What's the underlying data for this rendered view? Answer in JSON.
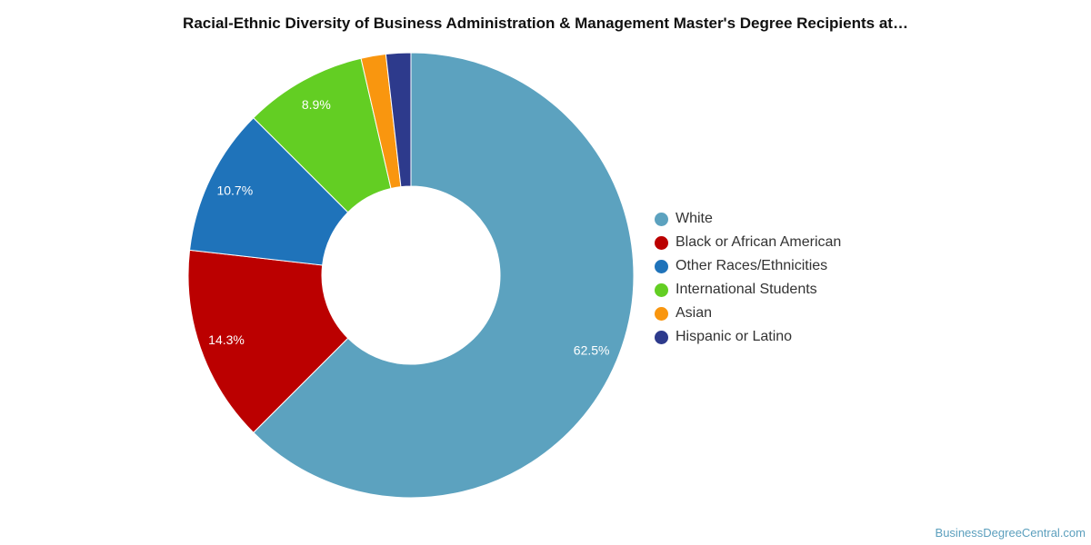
{
  "chart_data": {
    "type": "pie",
    "title": "Racial-Ethnic Diversity of Business Administration & Management Master's Degree Recipients at…",
    "legend_position": "right",
    "start_angle_deg": 0,
    "slices": [
      {
        "category": "White",
        "value": 62.5,
        "label": "62.5%",
        "color": "#5ca2bf"
      },
      {
        "category": "Black or African American",
        "value": 14.3,
        "label": "14.3%",
        "color": "#bb0000"
      },
      {
        "category": "Other Races/Ethnicities",
        "value": 10.7,
        "label": "10.7%",
        "color": "#1f73ba"
      },
      {
        "category": "International Students",
        "value": 8.9,
        "label": "8.9%",
        "color": "#63ce23"
      },
      {
        "category": "Asian",
        "value": 1.8,
        "label": "",
        "color": "#f9960f"
      },
      {
        "category": "Hispanic or Latino",
        "value": 1.8,
        "label": "",
        "color": "#2d3a8c"
      }
    ]
  },
  "watermark": "BusinessDegreeCentral.com"
}
